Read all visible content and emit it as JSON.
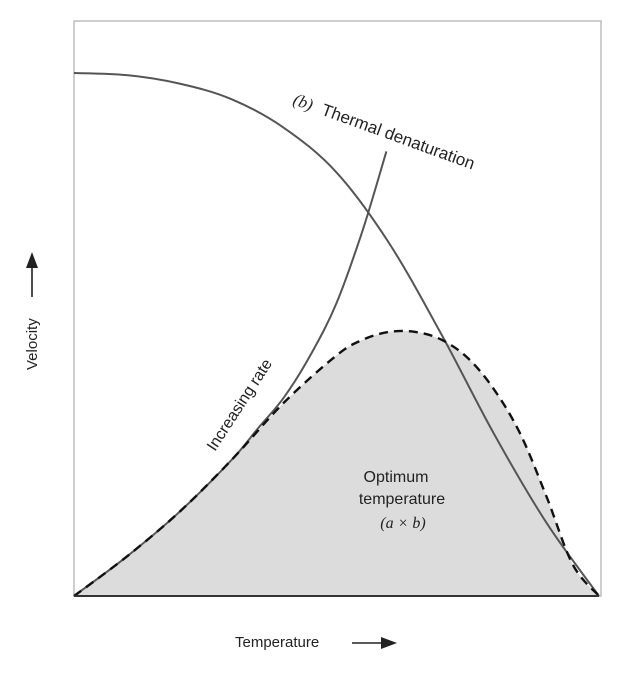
{
  "chart_data": {
    "type": "line",
    "xlabel": "Temperature",
    "ylabel": "Velocity",
    "axis_arrows": true,
    "x_range": [
      0,
      100
    ],
    "y_range": [
      0,
      100
    ],
    "grid": false,
    "legend": "none",
    "series": [
      {
        "key": "thermal",
        "label_prefix": "(b)",
        "label_text": "Thermal denaturation",
        "style": "solid",
        "x": [
          0,
          10,
          20,
          30,
          40,
          50,
          60,
          70,
          80,
          90,
          100
        ],
        "y": [
          100,
          99.6,
          98,
          95,
          89.5,
          81,
          67.5,
          50,
          31,
          14,
          0
        ]
      },
      {
        "key": "increasing",
        "label_text": "Increasing rate",
        "style": "solid",
        "x": [
          0,
          10,
          20,
          30,
          35,
          40,
          45,
          50,
          55,
          59.5
        ],
        "y": [
          0,
          7.5,
          16,
          26,
          32,
          38,
          46,
          56,
          70,
          85
        ]
      },
      {
        "key": "product",
        "style": "dashed",
        "x": [
          0,
          10,
          20,
          30,
          40,
          50,
          55,
          60,
          65,
          70,
          75,
          80,
          85,
          90,
          95,
          100
        ],
        "y": [
          0,
          7.5,
          16,
          26,
          37,
          46,
          49,
          50.5,
          50.5,
          49,
          45.5,
          39.5,
          31,
          19,
          6,
          0
        ]
      }
    ],
    "shaded_region": {
      "under_series": "product",
      "color": "#dddddd",
      "label_lines": [
        "Optimum",
        "temperature"
      ],
      "label_formula": "(a × b)"
    }
  },
  "colors": {
    "curve": "#555555",
    "dashed": "#111111",
    "shade": "#dcdcdc",
    "frame": "#bdbdbd",
    "text": "#222222"
  }
}
